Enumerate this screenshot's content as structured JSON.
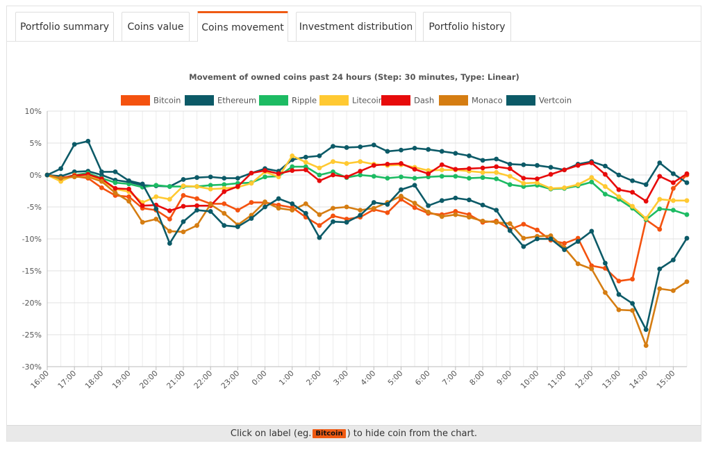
{
  "tabs": [
    {
      "label": "Portfolio summary",
      "active": false
    },
    {
      "label": "Coins value",
      "active": false
    },
    {
      "label": "Coins movement",
      "active": true
    },
    {
      "label": "Investment distribution",
      "active": false
    },
    {
      "label": "Portfolio history",
      "active": false
    }
  ],
  "footer": {
    "before": "Click on label (eg.",
    "badge": "Bitcoin",
    "after": ") to hide coin from the chart."
  },
  "colors": {
    "accent": "#ef5a13"
  },
  "chart_data": {
    "type": "line",
    "title": "Movement of owned coins past 24 hours (Step: 30 minutes, Type: Linear)",
    "xlabel": "",
    "ylabel": "",
    "ylim": [
      -30,
      10
    ],
    "yticks": [
      10,
      5,
      0,
      -5,
      -10,
      -15,
      -20,
      -25,
      -30
    ],
    "ytick_labels": [
      "10%",
      "5%",
      "0%",
      "-5%",
      "-10%",
      "-15%",
      "-20%",
      "-25%",
      "-30%"
    ],
    "x_tick_labels": [
      "16:00",
      "17:00",
      "18:00",
      "19:00",
      "20:00",
      "21:00",
      "22:00",
      "23:00",
      "0:00",
      "1:00",
      "2:00",
      "3:00",
      "4:00",
      "5:00",
      "6:00",
      "7:00",
      "8:00",
      "9:00",
      "10:00",
      "11:00",
      "12:00",
      "13:00",
      "14:00",
      "15:00"
    ],
    "points_per_series": 48,
    "step": "30 minutes",
    "grid": true,
    "legend_position": "top",
    "series": [
      {
        "name": "Bitcoin",
        "color": "#f4520f",
        "values": [
          0,
          -0.4,
          -0.2,
          -0.5,
          -2,
          -3.2,
          -3.4,
          -5.2,
          -5.5,
          -6.9,
          -3.2,
          -3.7,
          -4.5,
          -4.5,
          -5.5,
          -4.3,
          -4.3,
          -4.7,
          -5.1,
          -6.6,
          -7.9,
          -6.4,
          -6.9,
          -6.6,
          -5.4,
          -5.9,
          -3.8,
          -5.1,
          -6,
          -6.2,
          -5.7,
          -6.2,
          -7.4,
          -7.2,
          -8.5,
          -7.7,
          -8.6,
          -10.2,
          -10.7,
          -9.9,
          -14.2,
          -14.6,
          -16.6,
          -16.3,
          -7,
          -8.5,
          -2.1,
          0
        ]
      },
      {
        "name": "Ethereum",
        "color": "#0c5a67",
        "values": [
          0,
          -0.2,
          0.5,
          0.6,
          0,
          -0.8,
          -1.1,
          -1.6,
          -1.7,
          -1.8,
          -0.7,
          -0.4,
          -0.3,
          -0.5,
          -0.5,
          0.3,
          1,
          0.6,
          2.4,
          2.8,
          3,
          4.5,
          4.3,
          4.4,
          4.7,
          3.7,
          3.9,
          4.2,
          4,
          3.7,
          3.4,
          3,
          2.3,
          2.5,
          1.7,
          1.6,
          1.5,
          1.2,
          0.8,
          1.7,
          2.1,
          1.4,
          0,
          -0.9,
          -1.5,
          1.9,
          0.2,
          -1.2
        ]
      },
      {
        "name": "Ripple",
        "color": "#1dbb63",
        "values": [
          0,
          -0.6,
          0,
          0.3,
          -0.5,
          -1.2,
          -1.4,
          -1.9,
          -1.6,
          -1.8,
          -1.8,
          -1.8,
          -1.6,
          -1.5,
          -1.3,
          -1.2,
          -0.3,
          -0.2,
          1.3,
          1.3,
          0,
          0.5,
          -0.4,
          0,
          -0.2,
          -0.5,
          -0.3,
          -0.5,
          -0.3,
          -0.2,
          -0.2,
          -0.5,
          -0.4,
          -0.6,
          -1.5,
          -1.8,
          -1.6,
          -2.2,
          -2.1,
          -1.7,
          -1.1,
          -3,
          -3.8,
          -5.2,
          -7,
          -5.3,
          -5.5,
          -6.2
        ]
      },
      {
        "name": "Litecoin",
        "color": "#ffc932",
        "values": [
          0,
          -1,
          0,
          0,
          -0.8,
          -2.2,
          -2.6,
          -4.3,
          -3.4,
          -3.8,
          -1.7,
          -1.8,
          -2.2,
          -2.1,
          -1.9,
          -1.3,
          0.5,
          -0.3,
          3,
          2,
          1.1,
          2.1,
          1.8,
          2.1,
          1.7,
          1.5,
          1.6,
          1.2,
          0.7,
          0.8,
          0.8,
          0.6,
          0.4,
          0.4,
          -0.2,
          -1.3,
          -1.2,
          -2.1,
          -2,
          -1.5,
          -0.4,
          -1.8,
          -3.4,
          -4.9,
          -6.8,
          -3.8,
          -4,
          -4
        ]
      },
      {
        "name": "Dash",
        "color": "#e70b0b",
        "values": [
          0,
          -0.5,
          -0.1,
          0.1,
          -0.6,
          -2.1,
          -2.2,
          -4.8,
          -4.7,
          -5.6,
          -4.9,
          -4.8,
          -4.8,
          -2.6,
          -1.8,
          0.3,
          0.7,
          0.2,
          0.7,
          0.8,
          -0.9,
          0,
          -0.3,
          0.6,
          1.5,
          1.7,
          1.8,
          0.9,
          0.2,
          1.6,
          0.9,
          1,
          1.1,
          1.3,
          1,
          -0.5,
          -0.6,
          0.1,
          0.8,
          1.5,
          1.9,
          0.1,
          -2.3,
          -2.7,
          -4.1,
          -0.2,
          -1.2,
          0.2
        ]
      },
      {
        "name": "Monaco",
        "color": "#d57d12",
        "values": [
          0,
          -0.5,
          -0.3,
          -0.3,
          -1,
          -2.8,
          -4.1,
          -7.4,
          -6.9,
          -8.8,
          -8.9,
          -7.9,
          -4.6,
          -6,
          -7.8,
          -6.3,
          -4.2,
          -5.2,
          -5.5,
          -4.5,
          -6.2,
          -5.2,
          -5,
          -5.5,
          -5.2,
          -4.3,
          -3.3,
          -4.4,
          -5.8,
          -6.5,
          -6.2,
          -6.6,
          -7.2,
          -7.4,
          -7.6,
          -9.9,
          -9.6,
          -9.5,
          -11.4,
          -13.9,
          -14.7,
          -18.4,
          -21.1,
          -21.2,
          -26.7,
          -17.8,
          -18.1,
          -16.7
        ]
      },
      {
        "name": "Vertcoin",
        "color": "#0c5a67",
        "values": [
          0,
          1,
          4.8,
          5.3,
          0.5,
          0.5,
          -0.9,
          -1.4,
          -5.3,
          -10.7,
          -7.3,
          -5.5,
          -5.7,
          -7.9,
          -8.1,
          -6.8,
          -5,
          -3.7,
          -4.5,
          -6,
          -9.8,
          -7.3,
          -7.4,
          -6.3,
          -4.3,
          -4.6,
          -2.3,
          -1.6,
          -4.8,
          -4,
          -3.6,
          -3.9,
          -4.7,
          -5.5,
          -8.7,
          -11.2,
          -10,
          -10,
          -11.7,
          -10.4,
          -8.8,
          -13.8,
          -18.7,
          -20.1,
          -24.2,
          -14.7,
          -13.3,
          -9.9
        ]
      }
    ]
  }
}
